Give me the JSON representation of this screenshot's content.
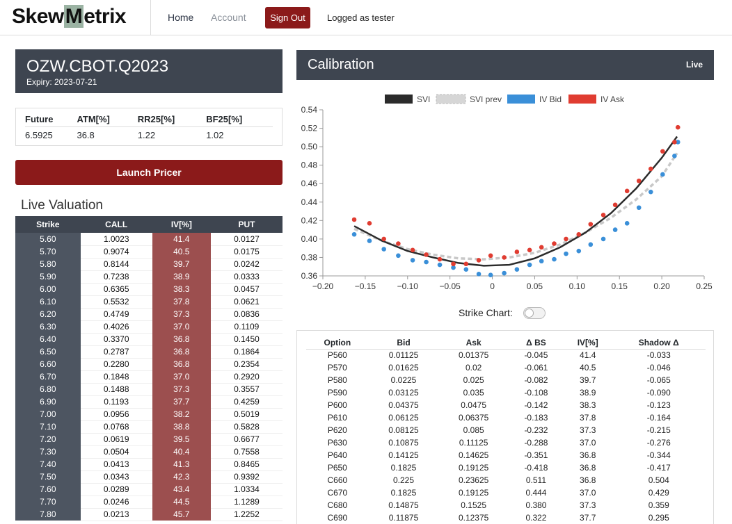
{
  "nav": {
    "brand_pre": "Skew",
    "brand_hl": "M",
    "brand_post": "etrix",
    "home": "Home",
    "account": "Account",
    "signout": "Sign Out",
    "logged": "Logged as tester"
  },
  "product": {
    "title": "OZW.CBOT.Q2023",
    "expiry": "Expiry: 2023-07-21"
  },
  "summary": {
    "headers": [
      "Future",
      "ATM[%]",
      "RR25[%]",
      "BF25[%]"
    ],
    "values": [
      "6.5925",
      "36.8",
      "1.22",
      "1.02"
    ]
  },
  "launch_label": "Launch Pricer",
  "live_title": "Live Valuation",
  "valuation": {
    "headers": [
      "Strike",
      "CALL",
      "IV[%]",
      "PUT"
    ],
    "rows": [
      [
        "5.60",
        "1.0023",
        "41.4",
        "0.0127"
      ],
      [
        "5.70",
        "0.9074",
        "40.5",
        "0.0175"
      ],
      [
        "5.80",
        "0.8144",
        "39.7",
        "0.0242"
      ],
      [
        "5.90",
        "0.7238",
        "38.9",
        "0.0333"
      ],
      [
        "6.00",
        "0.6365",
        "38.3",
        "0.0457"
      ],
      [
        "6.10",
        "0.5532",
        "37.8",
        "0.0621"
      ],
      [
        "6.20",
        "0.4749",
        "37.3",
        "0.0836"
      ],
      [
        "6.30",
        "0.4026",
        "37.0",
        "0.1109"
      ],
      [
        "6.40",
        "0.3370",
        "36.8",
        "0.1450"
      ],
      [
        "6.50",
        "0.2787",
        "36.8",
        "0.1864"
      ],
      [
        "6.60",
        "0.2280",
        "36.8",
        "0.2354"
      ],
      [
        "6.70",
        "0.1848",
        "37.0",
        "0.2920"
      ],
      [
        "6.80",
        "0.1488",
        "37.3",
        "0.3557"
      ],
      [
        "6.90",
        "0.1193",
        "37.7",
        "0.4259"
      ],
      [
        "7.00",
        "0.0956",
        "38.2",
        "0.5019"
      ],
      [
        "7.10",
        "0.0768",
        "38.8",
        "0.5828"
      ],
      [
        "7.20",
        "0.0619",
        "39.5",
        "0.6677"
      ],
      [
        "7.30",
        "0.0504",
        "40.4",
        "0.7558"
      ],
      [
        "7.40",
        "0.0413",
        "41.3",
        "0.8465"
      ],
      [
        "7.50",
        "0.0343",
        "42.3",
        "0.9392"
      ],
      [
        "7.60",
        "0.0289",
        "43.4",
        "1.0334"
      ],
      [
        "7.70",
        "0.0246",
        "44.5",
        "1.1289"
      ],
      [
        "7.80",
        "0.0213",
        "45.7",
        "1.2252"
      ]
    ]
  },
  "calibration": {
    "title": "Calibration",
    "badge": "Live"
  },
  "strike_chart_label": "Strike Chart:",
  "options": {
    "headers": [
      "Option",
      "Bid",
      "Ask",
      "Δ BS",
      "IV[%]",
      "Shadow Δ"
    ],
    "rows": [
      [
        "P560",
        "0.01125",
        "0.01375",
        "-0.045",
        "41.4",
        "-0.033"
      ],
      [
        "P570",
        "0.01625",
        "0.02",
        "-0.061",
        "40.5",
        "-0.046"
      ],
      [
        "P580",
        "0.0225",
        "0.025",
        "-0.082",
        "39.7",
        "-0.065"
      ],
      [
        "P590",
        "0.03125",
        "0.035",
        "-0.108",
        "38.9",
        "-0.090"
      ],
      [
        "P600",
        "0.04375",
        "0.0475",
        "-0.142",
        "38.3",
        "-0.123"
      ],
      [
        "P610",
        "0.06125",
        "0.06375",
        "-0.183",
        "37.8",
        "-0.164"
      ],
      [
        "P620",
        "0.08125",
        "0.085",
        "-0.232",
        "37.3",
        "-0.215"
      ],
      [
        "P630",
        "0.10875",
        "0.11125",
        "-0.288",
        "37.0",
        "-0.276"
      ],
      [
        "P640",
        "0.14125",
        "0.14625",
        "-0.351",
        "36.8",
        "-0.344"
      ],
      [
        "P650",
        "0.1825",
        "0.19125",
        "-0.418",
        "36.8",
        "-0.417"
      ],
      [
        "C660",
        "0.225",
        "0.23625",
        "0.511",
        "36.8",
        "0.504"
      ],
      [
        "C670",
        "0.1825",
        "0.19125",
        "0.444",
        "37.0",
        "0.429"
      ],
      [
        "C680",
        "0.14875",
        "0.1525",
        "0.380",
        "37.3",
        "0.359"
      ],
      [
        "C690",
        "0.11875",
        "0.12375",
        "0.322",
        "37.7",
        "0.295"
      ]
    ]
  },
  "chart_data": {
    "type": "scatter",
    "xlim": [
      -0.2,
      0.25
    ],
    "ylim": [
      0.36,
      0.54
    ],
    "x_ticks": [
      "−0.20",
      "−0.15",
      "−0.10",
      "−0.05",
      "0",
      "0.05",
      "0.10",
      "0.15",
      "0.20",
      "0.25"
    ],
    "x_tick_values": [
      -0.2,
      -0.15,
      -0.1,
      -0.05,
      0,
      0.05,
      0.1,
      0.15,
      0.2,
      0.25
    ],
    "y_ticks": [
      "0.54",
      "0.52",
      "0.50",
      "0.48",
      "0.46",
      "0.44",
      "0.42",
      "0.40",
      "0.38",
      "0.36"
    ],
    "y_tick_values": [
      0.54,
      0.52,
      0.5,
      0.48,
      0.46,
      0.44,
      0.42,
      0.4,
      0.38,
      0.36
    ],
    "legend": [
      "SVI",
      "SVI prev",
      "IV Bid",
      "IV Ask"
    ],
    "legend_position": "top-center",
    "colors": {
      "svi": "#2b2b2b",
      "svi_prev": "#c8c8c8",
      "bid": "#3a8fd8",
      "ask": "#e03c31"
    },
    "svi": {
      "x": [
        -0.163,
        -0.13,
        -0.1,
        -0.07,
        -0.04,
        -0.01,
        0.02,
        0.05,
        0.08,
        0.11,
        0.14,
        0.17,
        0.2,
        0.218
      ],
      "y": [
        0.414,
        0.398,
        0.387,
        0.38,
        0.374,
        0.371,
        0.372,
        0.379,
        0.391,
        0.407,
        0.428,
        0.455,
        0.488,
        0.511
      ]
    },
    "svi_prev": {
      "x": [
        -0.163,
        -0.13,
        -0.1,
        -0.07,
        -0.04,
        -0.01,
        0.02,
        0.05,
        0.08,
        0.11,
        0.14,
        0.17,
        0.2,
        0.218
      ],
      "y": [
        0.411,
        0.398,
        0.389,
        0.383,
        0.379,
        0.378,
        0.38,
        0.385,
        0.394,
        0.407,
        0.423,
        0.443,
        0.468,
        0.493
      ]
    },
    "iv_bid": {
      "x": [
        -0.163,
        -0.145,
        -0.128,
        -0.111,
        -0.094,
        -0.078,
        -0.062,
        -0.046,
        -0.031,
        -0.016,
        -0.002,
        0.014,
        0.029,
        0.044,
        0.058,
        0.073,
        0.087,
        0.102,
        0.116,
        0.131,
        0.145,
        0.159,
        0.173,
        0.187,
        0.201,
        0.215,
        0.219
      ],
      "y": [
        0.405,
        0.398,
        0.389,
        0.382,
        0.377,
        0.375,
        0.372,
        0.369,
        0.367,
        0.362,
        0.361,
        0.363,
        0.367,
        0.372,
        0.376,
        0.378,
        0.384,
        0.387,
        0.394,
        0.4,
        0.41,
        0.417,
        0.434,
        0.451,
        0.47,
        0.49,
        0.505
      ]
    },
    "iv_ask": {
      "x": [
        -0.163,
        -0.145,
        -0.128,
        -0.111,
        -0.094,
        -0.078,
        -0.062,
        -0.046,
        -0.031,
        -0.016,
        -0.002,
        0.014,
        0.029,
        0.044,
        0.058,
        0.073,
        0.087,
        0.102,
        0.116,
        0.131,
        0.145,
        0.159,
        0.173,
        0.187,
        0.201,
        0.215,
        0.219
      ],
      "y": [
        0.421,
        0.417,
        0.4,
        0.395,
        0.388,
        0.383,
        0.378,
        0.373,
        0.373,
        0.377,
        0.382,
        0.38,
        0.386,
        0.388,
        0.391,
        0.395,
        0.4,
        0.405,
        0.416,
        0.426,
        0.437,
        0.452,
        0.463,
        0.476,
        0.495,
        0.505,
        0.521
      ]
    }
  }
}
